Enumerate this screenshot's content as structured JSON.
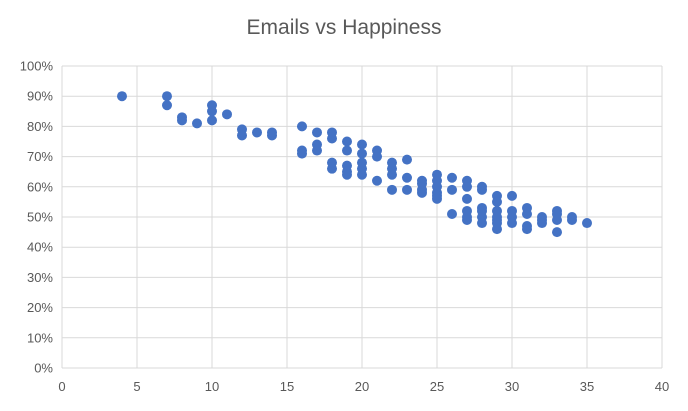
{
  "chart_data": {
    "type": "scatter",
    "title": "Emails vs Happiness",
    "xlabel": "",
    "ylabel": "",
    "xlim": [
      0,
      40
    ],
    "ylim": [
      0,
      1
    ],
    "x_ticks": [
      "0",
      "5",
      "10",
      "15",
      "20",
      "25",
      "30",
      "35",
      "40"
    ],
    "y_ticks": [
      "0%",
      "10%",
      "20%",
      "30%",
      "40%",
      "50%",
      "60%",
      "70%",
      "80%",
      "90%",
      "100%"
    ],
    "grid": true,
    "legend": "none",
    "marker_color": "#4472C4",
    "points": [
      [
        4,
        0.9
      ],
      [
        7,
        0.9
      ],
      [
        7,
        0.87
      ],
      [
        8,
        0.83
      ],
      [
        8,
        0.82
      ],
      [
        9,
        0.81
      ],
      [
        10,
        0.87
      ],
      [
        10,
        0.85
      ],
      [
        10,
        0.82
      ],
      [
        11,
        0.84
      ],
      [
        12,
        0.79
      ],
      [
        12,
        0.77
      ],
      [
        13,
        0.78
      ],
      [
        14,
        0.78
      ],
      [
        14,
        0.77
      ],
      [
        16,
        0.8
      ],
      [
        16,
        0.72
      ],
      [
        16,
        0.71
      ],
      [
        17,
        0.78
      ],
      [
        17,
        0.74
      ],
      [
        17,
        0.72
      ],
      [
        18,
        0.78
      ],
      [
        18,
        0.76
      ],
      [
        18,
        0.68
      ],
      [
        18,
        0.66
      ],
      [
        19,
        0.75
      ],
      [
        19,
        0.72
      ],
      [
        19,
        0.67
      ],
      [
        19,
        0.65
      ],
      [
        19,
        0.64
      ],
      [
        20,
        0.74
      ],
      [
        20,
        0.71
      ],
      [
        20,
        0.68
      ],
      [
        20,
        0.66
      ],
      [
        20,
        0.64
      ],
      [
        21,
        0.72
      ],
      [
        21,
        0.7
      ],
      [
        21,
        0.62
      ],
      [
        22,
        0.68
      ],
      [
        22,
        0.66
      ],
      [
        22,
        0.64
      ],
      [
        22,
        0.59
      ],
      [
        23,
        0.69
      ],
      [
        23,
        0.63
      ],
      [
        23,
        0.59
      ],
      [
        24,
        0.62
      ],
      [
        24,
        0.61
      ],
      [
        24,
        0.59
      ],
      [
        24,
        0.58
      ],
      [
        25,
        0.64
      ],
      [
        25,
        0.62
      ],
      [
        25,
        0.6
      ],
      [
        25,
        0.58
      ],
      [
        25,
        0.57
      ],
      [
        25,
        0.56
      ],
      [
        26,
        0.63
      ],
      [
        26,
        0.59
      ],
      [
        26,
        0.51
      ],
      [
        27,
        0.62
      ],
      [
        27,
        0.6
      ],
      [
        27,
        0.56
      ],
      [
        27,
        0.52
      ],
      [
        27,
        0.5
      ],
      [
        27,
        0.49
      ],
      [
        28,
        0.6
      ],
      [
        28,
        0.59
      ],
      [
        28,
        0.53
      ],
      [
        28,
        0.52
      ],
      [
        28,
        0.5
      ],
      [
        28,
        0.48
      ],
      [
        29,
        0.57
      ],
      [
        29,
        0.55
      ],
      [
        29,
        0.52
      ],
      [
        29,
        0.5
      ],
      [
        29,
        0.49
      ],
      [
        29,
        0.48
      ],
      [
        29,
        0.46
      ],
      [
        30,
        0.57
      ],
      [
        30,
        0.52
      ],
      [
        30,
        0.5
      ],
      [
        30,
        0.48
      ],
      [
        31,
        0.53
      ],
      [
        31,
        0.51
      ],
      [
        31,
        0.47
      ],
      [
        31,
        0.46
      ],
      [
        32,
        0.5
      ],
      [
        32,
        0.49
      ],
      [
        32,
        0.48
      ],
      [
        33,
        0.52
      ],
      [
        33,
        0.51
      ],
      [
        33,
        0.49
      ],
      [
        33,
        0.45
      ],
      [
        34,
        0.5
      ],
      [
        34,
        0.49
      ],
      [
        35,
        0.48
      ]
    ]
  }
}
